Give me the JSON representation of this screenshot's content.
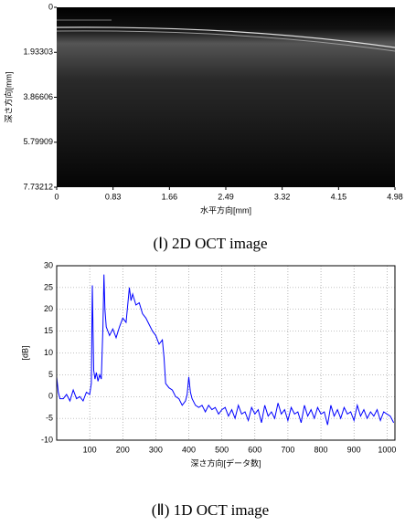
{
  "chart_data": [
    {
      "type": "image",
      "caption": "(Ⅰ) 2D OCT image",
      "xlabel": "水平方向[mm]",
      "ylabel": "深さ方向[mm]",
      "xlim": [
        0,
        4.98
      ],
      "xticks": [
        0,
        0.83,
        1.66,
        2.49,
        3.32,
        4.15,
        4.98
      ],
      "ylim": [
        7.73212,
        0
      ],
      "yticks": [
        0,
        1.93303,
        3.86606,
        5.79909,
        7.73212
      ],
      "grid": false
    },
    {
      "type": "line",
      "caption": "(Ⅱ) 1D OCT image",
      "xlabel": "深さ方向[データ数]",
      "ylabel": "[dB]",
      "xlim": [
        0,
        1024
      ],
      "xticks": [
        100,
        200,
        300,
        400,
        500,
        600,
        700,
        800,
        900,
        1000
      ],
      "ylim": [
        -10,
        30
      ],
      "yticks": [
        -10,
        -5,
        0,
        5,
        10,
        15,
        20,
        25,
        30
      ],
      "grid": true,
      "color": "#0000ff",
      "x": [
        0,
        5,
        10,
        20,
        30,
        40,
        50,
        60,
        70,
        80,
        90,
        100,
        105,
        108,
        112,
        116,
        120,
        125,
        130,
        135,
        140,
        143,
        146,
        150,
        160,
        170,
        180,
        190,
        200,
        210,
        220,
        225,
        230,
        240,
        250,
        260,
        270,
        280,
        290,
        300,
        310,
        320,
        325,
        330,
        340,
        350,
        360,
        370,
        380,
        390,
        395,
        400,
        405,
        410,
        420,
        430,
        440,
        450,
        460,
        470,
        480,
        490,
        500,
        510,
        520,
        530,
        540,
        550,
        560,
        570,
        580,
        590,
        600,
        610,
        620,
        630,
        640,
        650,
        660,
        670,
        680,
        690,
        700,
        710,
        720,
        730,
        740,
        750,
        760,
        770,
        780,
        790,
        800,
        810,
        820,
        830,
        840,
        850,
        860,
        870,
        880,
        890,
        900,
        910,
        920,
        930,
        940,
        950,
        960,
        970,
        980,
        990,
        1000,
        1010,
        1020
      ],
      "values": [
        4.5,
        1,
        -0.5,
        -0.5,
        0.5,
        -1,
        1.5,
        -0.5,
        0,
        -1,
        1,
        0.5,
        3,
        25.5,
        6,
        4,
        5.5,
        3.5,
        5,
        4,
        16,
        28,
        20,
        16,
        14,
        15.5,
        13.5,
        16,
        18,
        17,
        25,
        22,
        23.5,
        21,
        21.5,
        19,
        18,
        16.5,
        15,
        14,
        12,
        13,
        9,
        3,
        2,
        1.5,
        0,
        -0.5,
        -2,
        -1,
        0.5,
        4.5,
        1,
        -0.5,
        -2,
        -2.5,
        -2,
        -3.5,
        -2,
        -3,
        -2.5,
        -4,
        -3,
        -2.5,
        -4.5,
        -3,
        -5,
        -2,
        -4,
        -3.5,
        -5.5,
        -2.5,
        -4,
        -3,
        -6,
        -2,
        -4.5,
        -3.5,
        -5,
        -1.5,
        -4,
        -3,
        -5.5,
        -2.5,
        -4,
        -3.5,
        -6,
        -2,
        -4.5,
        -3,
        -5,
        -2.5,
        -4,
        -3.5,
        -6.5,
        -2,
        -4.5,
        -3,
        -5,
        -2.5,
        -4,
        -3.5,
        -5.5,
        -2,
        -4.5,
        -3,
        -5,
        -3.5,
        -4.5,
        -3,
        -5.5,
        -3.5,
        -4,
        -4.5,
        -6
      ]
    }
  ]
}
